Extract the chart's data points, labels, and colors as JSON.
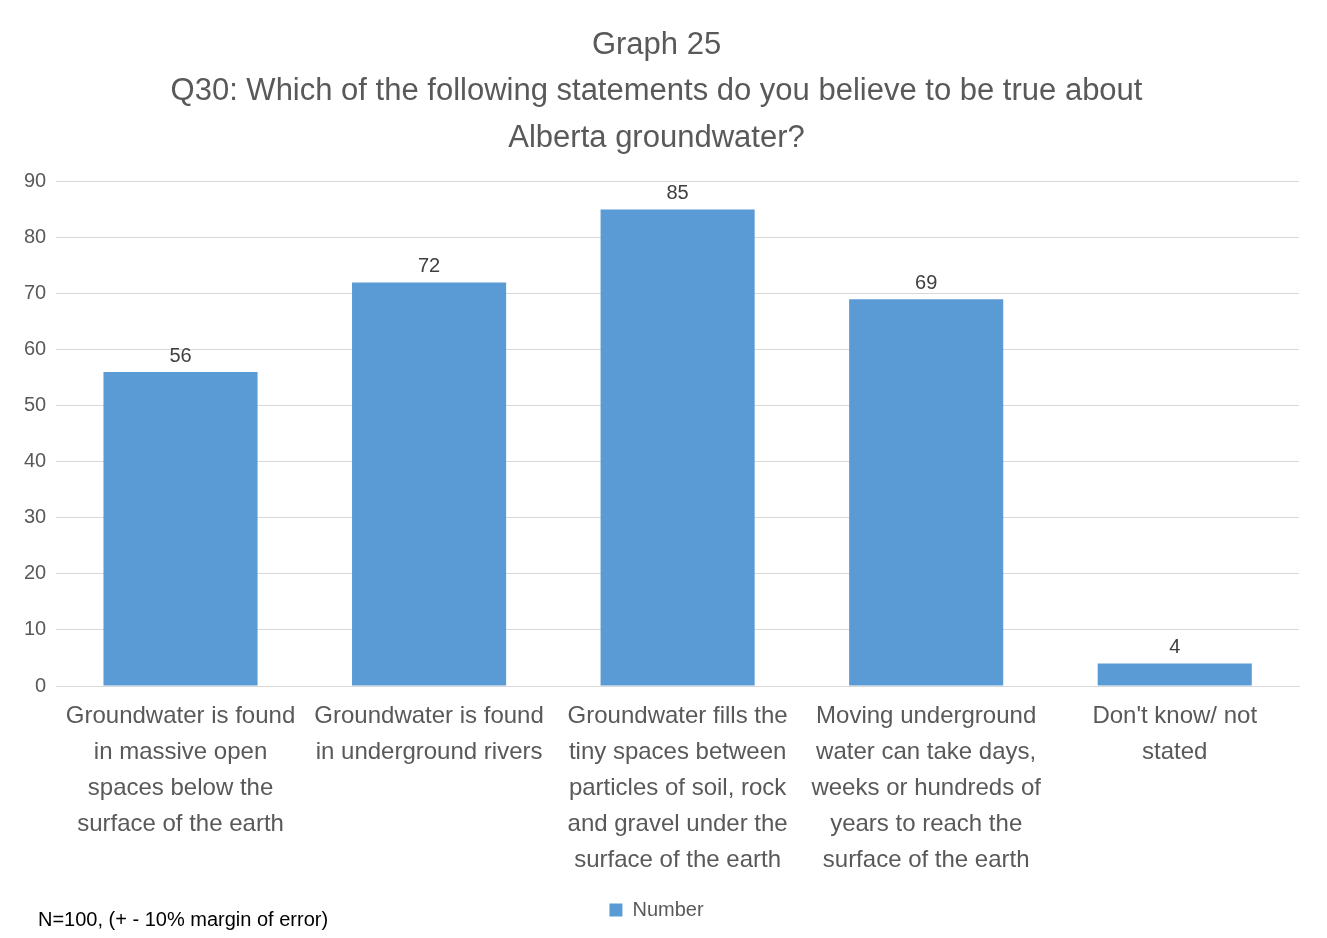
{
  "chart_data": {
    "type": "bar",
    "title": "Graph 25",
    "subtitle": "Q30: Which of the following statements do you believe to be true about Alberta groundwater?",
    "categories": [
      "Groundwater is found in massive open spaces below the surface of the earth",
      "Groundwater is found in underground rivers",
      "Groundwater fills the tiny spaces between particles of soil, rock and gravel under the surface of the earth",
      "Moving underground water can take days, weeks or hundreds of years to reach the surface of the earth",
      "Don't know/ not stated"
    ],
    "series": [
      {
        "name": "Number",
        "color": "#5b9bd5",
        "values": [
          56,
          72,
          85,
          69,
          4
        ]
      }
    ],
    "ylim": [
      0,
      90
    ],
    "yticks": [
      0,
      10,
      20,
      30,
      40,
      50,
      60,
      70,
      80,
      90
    ],
    "grid": "y",
    "legend": "bottom",
    "data_labels": true,
    "annotations": [
      "N=100, (+ - 10% margin of error)"
    ]
  }
}
